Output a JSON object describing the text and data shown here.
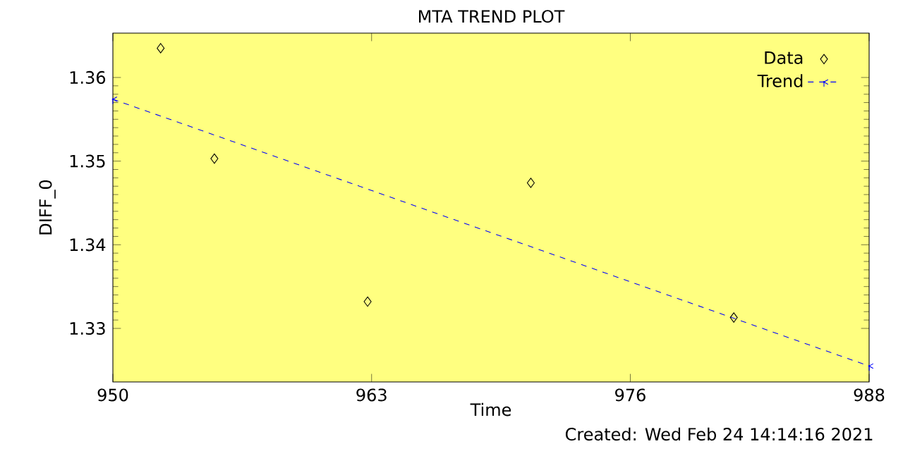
{
  "chart_data": {
    "type": "scatter",
    "title": "MTA TREND PLOT",
    "xlabel": "Time",
    "ylabel": "DIFF_0",
    "annotations": [
      "Created: Wed Feb 24 14:14:16 2021"
    ],
    "xlim": [
      950,
      988
    ],
    "xticks": [
      950,
      963,
      976,
      988
    ],
    "ylim": [
      1.3236,
      1.3653
    ],
    "yticks": [
      1.33,
      1.34,
      1.35,
      1.36
    ],
    "legend": "top right",
    "grid": false,
    "series": [
      {
        "name": "Data",
        "marker": "diamond",
        "color": "#000000",
        "x": [
          952.4,
          955.1,
          962.8,
          971.0,
          981.2
        ],
        "values": [
          1.3635,
          1.3503,
          1.3332,
          1.3474,
          1.3313
        ]
      },
      {
        "name": "Trend",
        "type": "line",
        "marker": "cross",
        "line_style": "dashed",
        "color": "#0000ff",
        "x": [
          950,
          988
        ],
        "values": [
          1.3574,
          1.3255
        ]
      }
    ]
  }
}
